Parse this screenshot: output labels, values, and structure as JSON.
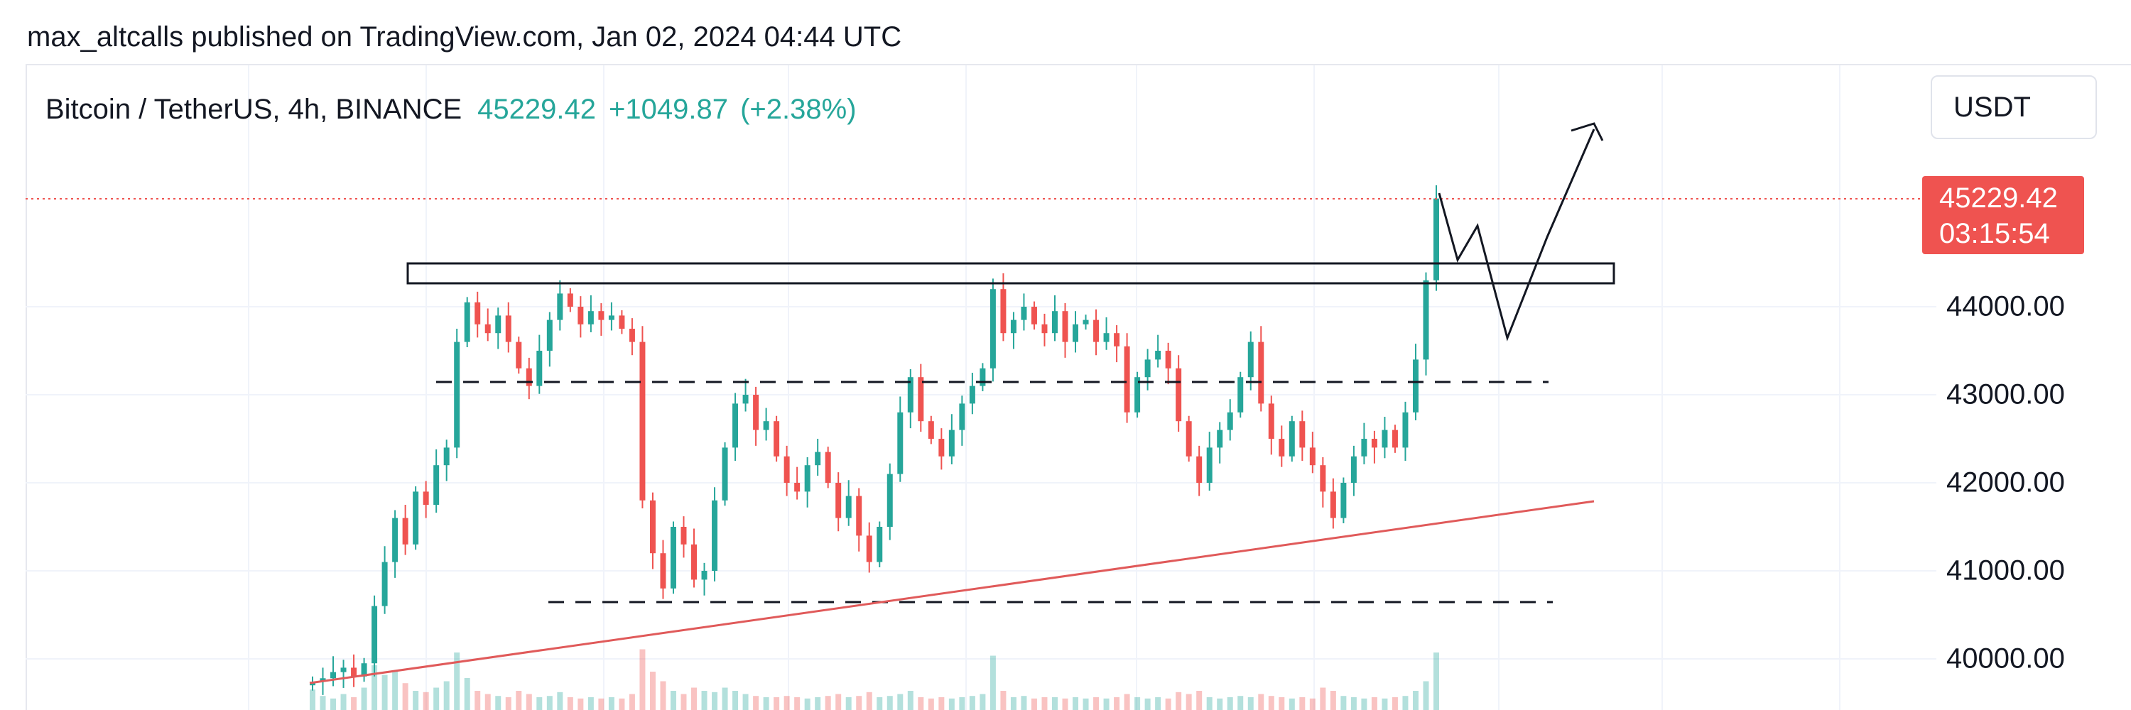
{
  "header": {
    "publisher": "max_altcalls published on TradingView.com, Jan 02, 2024 04:44 UTC"
  },
  "legend": {
    "symbol": "Bitcoin / TetherUS, 4h, BINANCE",
    "last": "45229.42",
    "change": "+1049.87",
    "change_pct": "(+2.38%)"
  },
  "currency": "USDT",
  "price_tag": {
    "price": "45229.42",
    "countdown": "03:15:54"
  },
  "colors": {
    "up": "#26a69a",
    "down": "#ef5350",
    "trendline": "#e05a5a",
    "grid": "#f0f3fa",
    "drawing": "#131722"
  },
  "chart_data": {
    "type": "candlestick",
    "symbol": "BTCUSDT",
    "timeframe": "4h",
    "ylim": [
      39800,
      46000
    ],
    "y_ticks": [
      "44000.00",
      "43000.00",
      "42000.00",
      "41000.00",
      "40000.00"
    ],
    "y_tick_values": [
      44000,
      43000,
      42000,
      41000,
      40000
    ],
    "last_price": 45229.42,
    "closes": [
      39740,
      39780,
      39850,
      39900,
      39800,
      39950,
      40600,
      41100,
      41600,
      41300,
      41900,
      41750,
      42200,
      42400,
      43600,
      44050,
      43800,
      43700,
      43900,
      43600,
      43300,
      43100,
      43500,
      43850,
      44150,
      44000,
      43800,
      43950,
      43850,
      43900,
      43750,
      43600,
      41800,
      41200,
      40800,
      41500,
      41300,
      40900,
      41000,
      41800,
      42400,
      42900,
      43000,
      42600,
      42700,
      42300,
      42000,
      41900,
      42200,
      42350,
      42000,
      41600,
      41850,
      41400,
      41100,
      41500,
      42100,
      42800,
      43200,
      42700,
      42500,
      42300,
      42600,
      42900,
      43100,
      43300,
      44200,
      43700,
      43850,
      44000,
      43800,
      43700,
      43950,
      43600,
      43800,
      43850,
      43600,
      43700,
      43550,
      42800,
      43200,
      43400,
      43500,
      43300,
      42700,
      42300,
      42000,
      42400,
      42600,
      42800,
      43200,
      43600,
      42900,
      42500,
      42300,
      42700,
      42400,
      42200,
      41900,
      41600,
      42000,
      42300,
      42500,
      42400,
      42600,
      42400,
      42800,
      43400,
      44300,
      45229
    ],
    "volumes": [
      0.32,
      0.22,
      0.18,
      0.25,
      0.2,
      0.35,
      0.7,
      0.55,
      0.6,
      0.42,
      0.3,
      0.28,
      0.35,
      0.45,
      0.9,
      0.5,
      0.3,
      0.25,
      0.22,
      0.2,
      0.3,
      0.25,
      0.2,
      0.22,
      0.28,
      0.2,
      0.18,
      0.2,
      0.18,
      0.2,
      0.18,
      0.25,
      0.95,
      0.6,
      0.45,
      0.3,
      0.25,
      0.35,
      0.3,
      0.28,
      0.35,
      0.3,
      0.25,
      0.22,
      0.2,
      0.2,
      0.22,
      0.2,
      0.18,
      0.2,
      0.22,
      0.25,
      0.2,
      0.22,
      0.28,
      0.2,
      0.22,
      0.25,
      0.3,
      0.2,
      0.18,
      0.2,
      0.18,
      0.2,
      0.22,
      0.25,
      0.85,
      0.3,
      0.2,
      0.22,
      0.18,
      0.2,
      0.2,
      0.18,
      0.2,
      0.18,
      0.2,
      0.18,
      0.2,
      0.25,
      0.2,
      0.18,
      0.2,
      0.18,
      0.28,
      0.25,
      0.3,
      0.2,
      0.18,
      0.2,
      0.22,
      0.2,
      0.25,
      0.22,
      0.2,
      0.18,
      0.2,
      0.18,
      0.35,
      0.3,
      0.22,
      0.2,
      0.18,
      0.2,
      0.18,
      0.2,
      0.22,
      0.3,
      0.45,
      0.9
    ]
  }
}
